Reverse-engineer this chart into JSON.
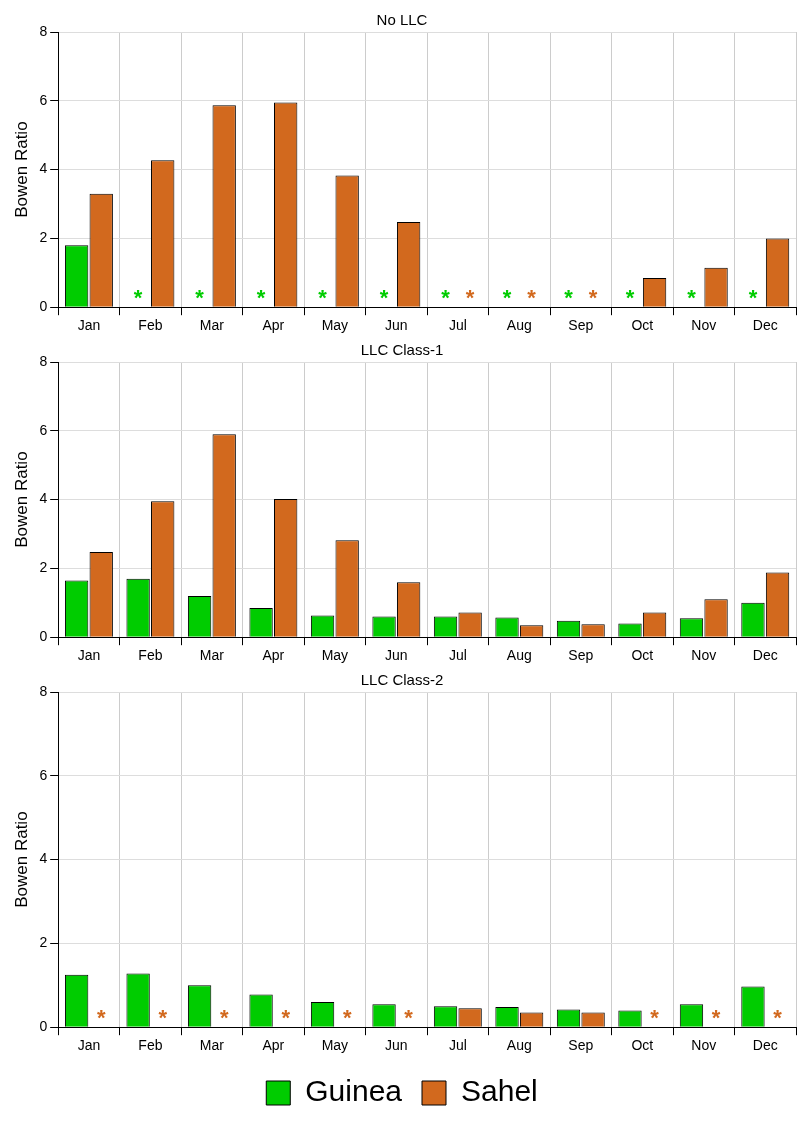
{
  "chart_data": [
    {
      "type": "bar",
      "title": "No LLC",
      "ylabel": "Bowen Ratio",
      "categories": [
        "Jan",
        "Feb",
        "Mar",
        "Apr",
        "May",
        "Jun",
        "Jul",
        "Aug",
        "Sep",
        "Oct",
        "Nov",
        "Dec"
      ],
      "ylim": [
        0,
        8
      ],
      "yticks": [
        0,
        2,
        4,
        6,
        8
      ],
      "grid": true,
      "legend": false,
      "series": [
        {
          "color": "#00cc00",
          "values": [
            1.8,
            null,
            null,
            null,
            null,
            null,
            null,
            null,
            null,
            null,
            null,
            null
          ]
        },
        {
          "color": "#d2691e",
          "values": [
            3.3,
            4.27,
            5.87,
            5.95,
            3.83,
            2.48,
            null,
            null,
            null,
            0.85,
            1.15,
            2.0
          ]
        }
      ],
      "annotations": [
        "*",
        "*",
        "*",
        "*",
        "*",
        "*",
        "*",
        "*",
        "*",
        "*",
        "*",
        "*",
        "*",
        "*"
      ]
    },
    {
      "type": "bar",
      "title": "LLC Class-1",
      "ylabel": "Bowen Ratio",
      "categories": [
        "Jan",
        "Feb",
        "Mar",
        "Apr",
        "May",
        "Jun",
        "Jul",
        "Aug",
        "Sep",
        "Oct",
        "Nov",
        "Dec"
      ],
      "ylim": [
        0,
        8
      ],
      "yticks": [
        0,
        2,
        4,
        6,
        8
      ],
      "grid": true,
      "legend": false,
      "series": [
        {
          "color": "#00cc00",
          "values": [
            1.65,
            1.7,
            1.2,
            0.85,
            0.63,
            0.6,
            0.6,
            0.57,
            0.48,
            0.4,
            0.55,
            1.0
          ]
        },
        {
          "color": "#d2691e",
          "values": [
            2.48,
            3.95,
            5.9,
            4.02,
            2.82,
            1.6,
            0.72,
            0.35,
            0.38,
            0.72,
            1.1,
            1.88
          ]
        }
      ]
    },
    {
      "type": "bar",
      "title": "LLC Class-2",
      "ylabel": "Bowen Ratio",
      "categories": [
        "Jan",
        "Feb",
        "Mar",
        "Apr",
        "May",
        "Jun",
        "Jul",
        "Aug",
        "Sep",
        "Oct",
        "Nov",
        "Dec"
      ],
      "ylim": [
        0,
        8
      ],
      "yticks": [
        0,
        2,
        4,
        6,
        8
      ],
      "grid": true,
      "legend": "bottom",
      "series": [
        {
          "name": "Guinea",
          "color": "#00cc00",
          "values": [
            1.25,
            1.28,
            1.0,
            0.78,
            0.6,
            0.55,
            0.5,
            0.48,
            0.42,
            0.4,
            0.55,
            0.97
          ]
        },
        {
          "name": "Sahel",
          "color": "#d2691e",
          "values": [
            null,
            null,
            null,
            null,
            null,
            null,
            0.45,
            0.35,
            0.35,
            null,
            null,
            null
          ]
        }
      ],
      "annotations": [
        "*",
        "*",
        "*",
        "*",
        "*",
        "*",
        "*",
        "*",
        "*"
      ]
    }
  ]
}
